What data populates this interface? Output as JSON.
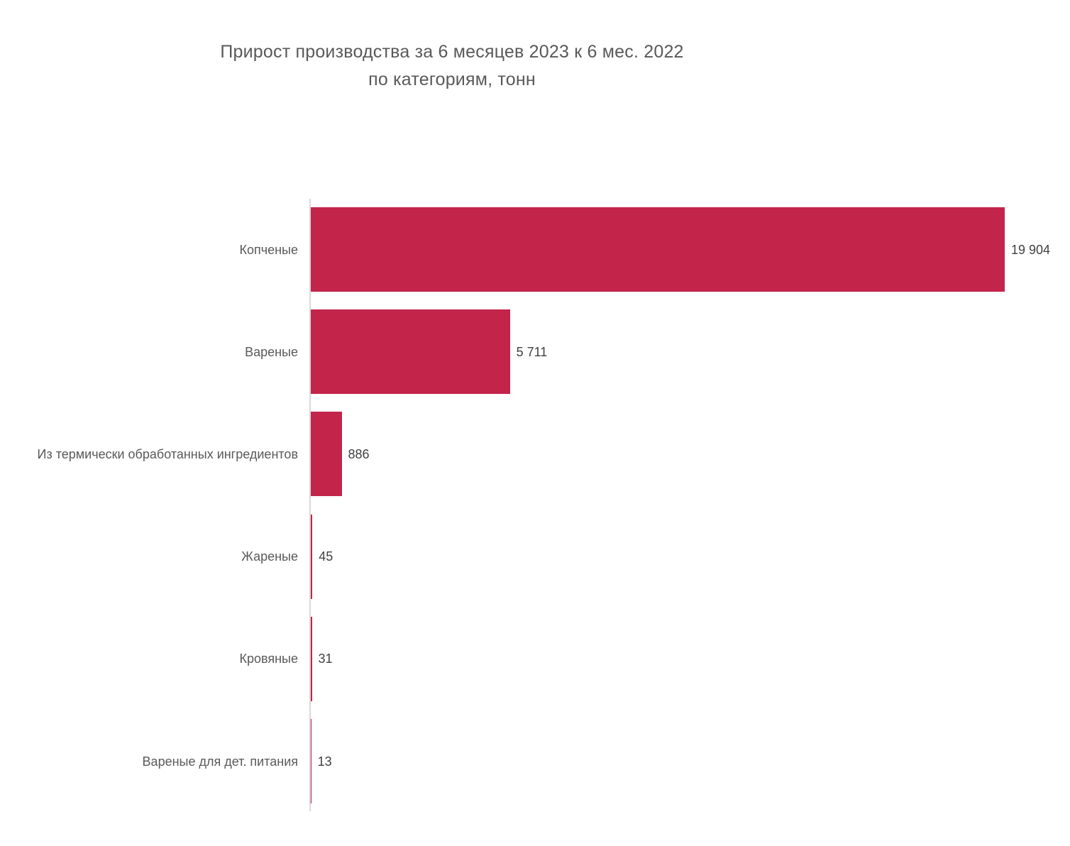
{
  "chart": {
    "title_line1": "Прирост производства за 6 месяцев 2023 к 6 мес. 2022",
    "title_line2": "по категориям, тонн"
  },
  "chart_data": {
    "type": "bar",
    "orientation": "horizontal",
    "title": "Прирост производства за 6 месяцев 2023 к 6 мес. 2022 по категориям, тонн",
    "xlabel": "",
    "ylabel": "",
    "categories": [
      "Копченые",
      "Вареные",
      "Из термически обработанных ингредиентов",
      "Жареные",
      "Кровяные",
      "Вареные для дет. питания"
    ],
    "values": [
      19904,
      5711,
      886,
      45,
      31,
      13
    ],
    "value_labels": [
      "19 904",
      "5 711",
      "886",
      "45",
      "31",
      "13"
    ],
    "xlim": [
      0,
      20000
    ],
    "grid": false,
    "legend": "none",
    "bar_color": "#c3244a",
    "axis_color": "#d9d9d9",
    "category_label_color": "#595959",
    "value_label_color": "#404040",
    "title_color": "#595959"
  }
}
